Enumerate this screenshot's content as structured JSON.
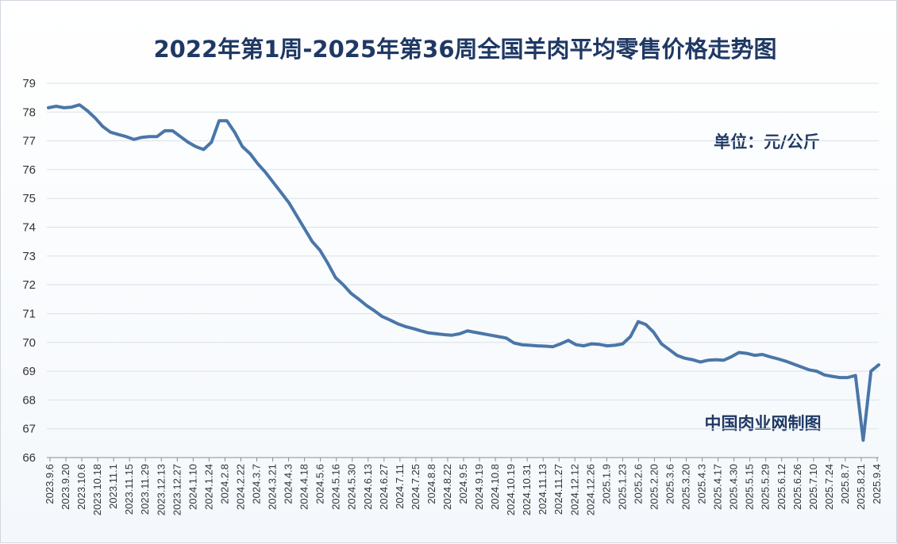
{
  "chart_data": {
    "type": "line",
    "title": "2022年第1周-2025年第36周全国羊肉平均零售价格走势图",
    "unit_note": "单位：元/公斤",
    "source_note": "中国肉业网制图",
    "ylim": [
      66,
      79
    ],
    "yticks": [
      66,
      67,
      68,
      69,
      70,
      71,
      72,
      73,
      74,
      75,
      76,
      77,
      78,
      79
    ],
    "grid": true,
    "legend": "none",
    "x_tick_labels": [
      "2023.9.6",
      "2023.9.20",
      "2023.10.6",
      "2023.10.18",
      "2023.11.1",
      "2023.11.15",
      "2023.11.29",
      "2023.12.13",
      "2023.12.27",
      "2024.1.10",
      "2024.1.24",
      "2024.2.8",
      "2024.2.22",
      "2024.3.7",
      "2024.3.21",
      "2024.4.3",
      "2024.4.18",
      "2024.5.6",
      "2024.5.16",
      "2024.5.30",
      "2024.6.13",
      "2024.6.27",
      "2024.7.11",
      "2024.7.25",
      "2024.8.8",
      "2024.8.22",
      "2024.9.5",
      "2024.9.19",
      "2024.10.8",
      "2024.10.19",
      "2024.10.31",
      "2024.11.13",
      "2024.11.27",
      "2024.12.12",
      "2024.12.26",
      "2025.1.9",
      "2025.1.23",
      "2025.2.6",
      "2025.2.20",
      "2025.3.6",
      "2025.3.20",
      "2025.4.3",
      "2025.4.17",
      "2025.4.30",
      "2025.5.15",
      "2025.5.29",
      "2025.6.12",
      "2025.6.26",
      "2025.7.10",
      "2025.7.24",
      "2025.8.7",
      "2025.8.21",
      "2025.9.4"
    ],
    "series": [
      {
        "color": "#4a76a8",
        "values": [
          78.15,
          78.2,
          78.15,
          78.17,
          78.25,
          78.05,
          77.8,
          77.5,
          77.3,
          77.22,
          77.15,
          77.05,
          77.12,
          77.15,
          77.15,
          77.35,
          77.35,
          77.15,
          76.95,
          76.8,
          76.7,
          76.95,
          77.7,
          77.7,
          77.3,
          76.8,
          76.55,
          76.2,
          75.9,
          75.55,
          75.2,
          74.85,
          74.4,
          73.95,
          73.5,
          73.2,
          72.75,
          72.25,
          72.0,
          71.7,
          71.5,
          71.28,
          71.1,
          70.9,
          70.78,
          70.65,
          70.55,
          70.48,
          70.4,
          70.33,
          70.3,
          70.27,
          70.25,
          70.3,
          70.4,
          70.35,
          70.3,
          70.25,
          70.2,
          70.15,
          69.98,
          69.92,
          69.9,
          69.88,
          69.87,
          69.85,
          69.95,
          70.07,
          69.92,
          69.88,
          69.95,
          69.93,
          69.88,
          69.9,
          69.95,
          70.2,
          70.72,
          70.62,
          70.35,
          69.95,
          69.75,
          69.55,
          69.45,
          69.4,
          69.32,
          69.38,
          69.4,
          69.38,
          69.5,
          69.65,
          69.62,
          69.55,
          69.58,
          69.5,
          69.43,
          69.35,
          69.25,
          69.15,
          69.05,
          69.0,
          68.87,
          68.82,
          68.78,
          68.78,
          68.85,
          66.6,
          69.0,
          69.22
        ]
      }
    ]
  },
  "colors": {
    "line": "#4a76a8",
    "title": "#1f3864",
    "grid": "#d9e1ea",
    "axis": "#8c8c8c"
  }
}
